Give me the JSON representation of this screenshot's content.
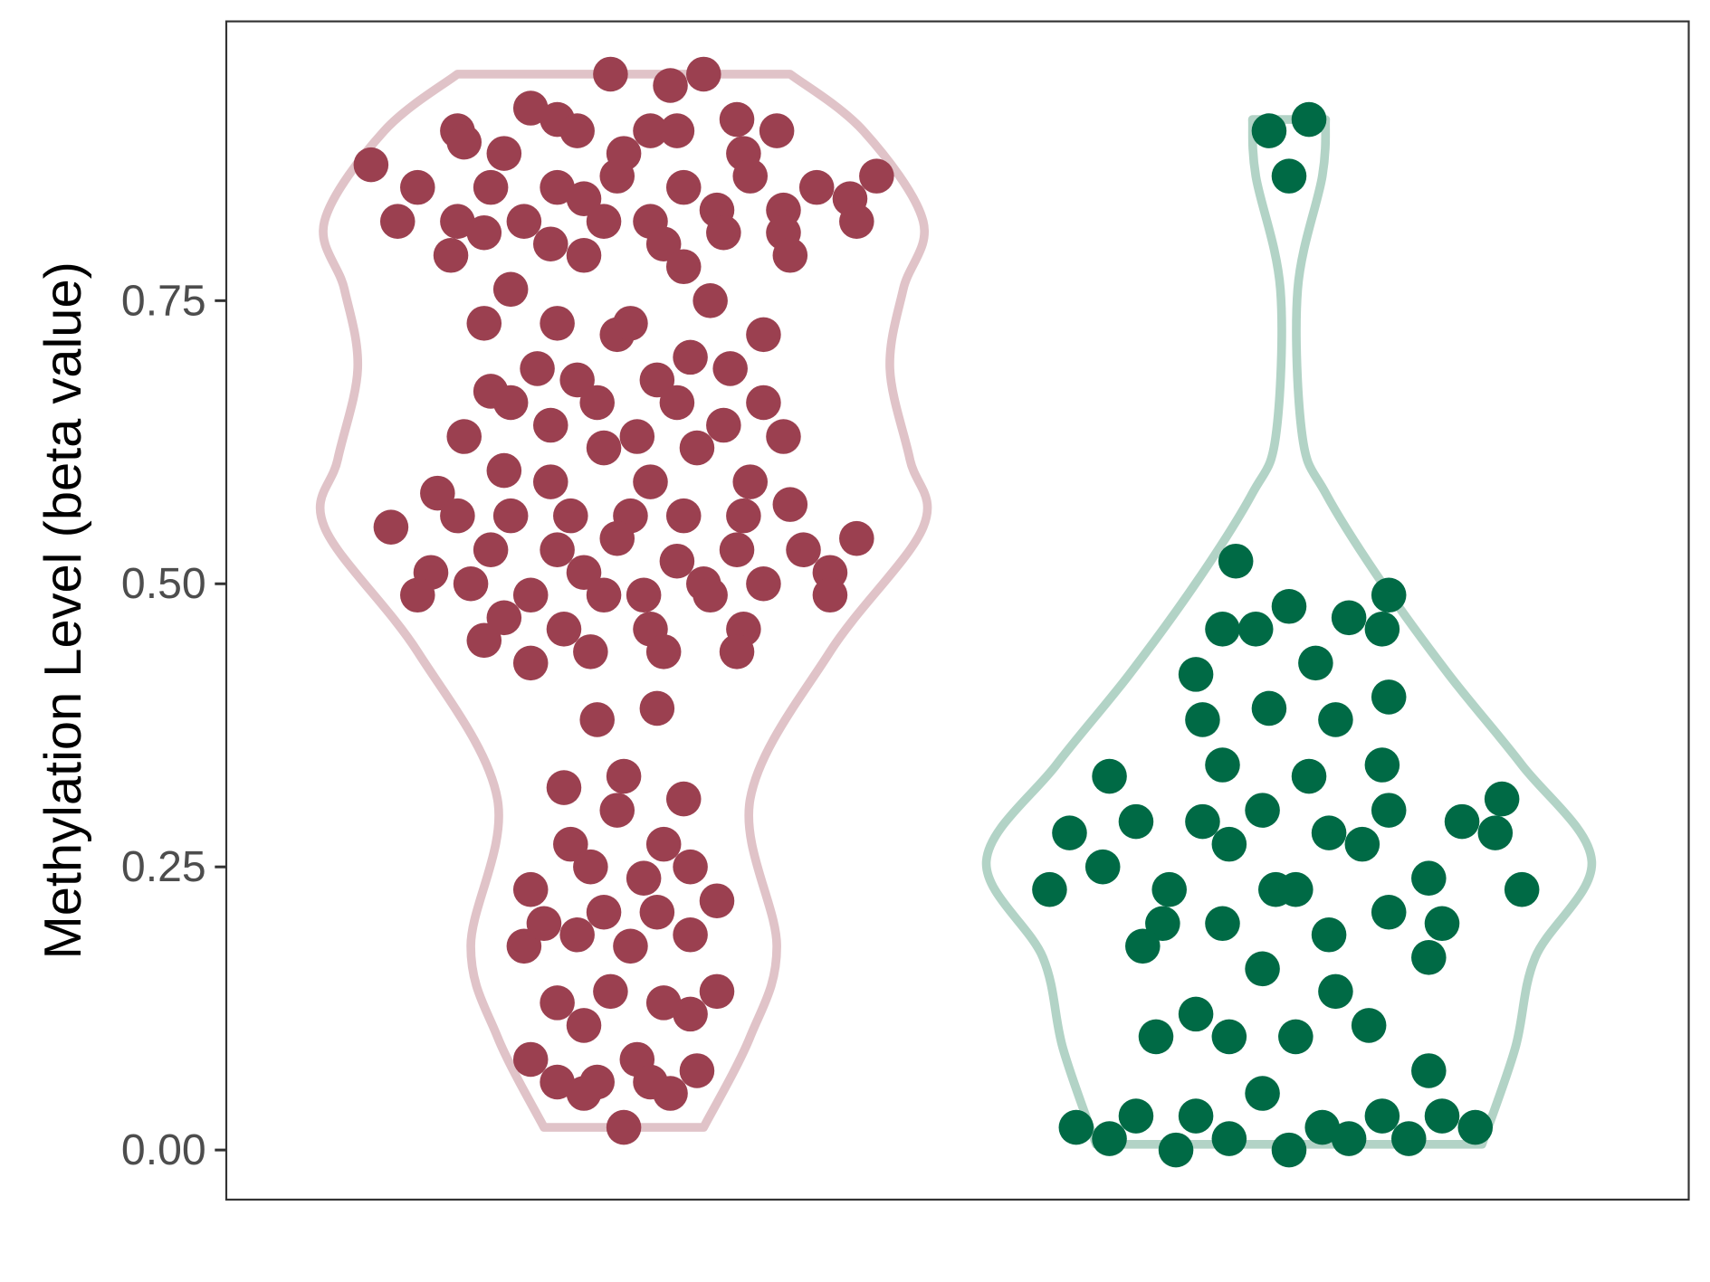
{
  "chart_data": {
    "type": "violin",
    "title": "",
    "xlabel": "",
    "ylabel": "Methylation Level (beta value)",
    "ylim": [
      -0.085,
      0.98
    ],
    "yticks": [
      0.0,
      0.25,
      0.5,
      0.75
    ],
    "ytick_labels": [
      "0.00",
      "0.25",
      "0.50",
      "0.75"
    ],
    "grid": false,
    "legend": "none",
    "series": [
      {
        "x_position": 1,
        "colors": {
          "point": "#9b4050",
          "violin": "#e0c3c8"
        },
        "violin_profile": [
          [
            0.02,
            0.12
          ],
          [
            0.1,
            0.19
          ],
          [
            0.18,
            0.23
          ],
          [
            0.31,
            0.19
          ],
          [
            0.44,
            0.31
          ],
          [
            0.55,
            0.45
          ],
          [
            0.61,
            0.43
          ],
          [
            0.69,
            0.4
          ],
          [
            0.76,
            0.42
          ],
          [
            0.82,
            0.45
          ],
          [
            0.9,
            0.36
          ],
          [
            0.95,
            0.25
          ]
        ],
        "points": [
          [
            -0.38,
            0.87
          ],
          [
            -0.34,
            0.82
          ],
          [
            -0.31,
            0.85
          ],
          [
            -0.26,
            0.79
          ],
          [
            -0.25,
            0.9
          ],
          [
            -0.24,
            0.89
          ],
          [
            -0.25,
            0.82
          ],
          [
            -0.21,
            0.81
          ],
          [
            -0.2,
            0.85
          ],
          [
            -0.18,
            0.88
          ],
          [
            -0.14,
            0.92
          ],
          [
            -0.1,
            0.91
          ],
          [
            -0.07,
            0.9
          ],
          [
            -0.1,
            0.85
          ],
          [
            -0.15,
            0.82
          ],
          [
            -0.11,
            0.8
          ],
          [
            -0.06,
            0.79
          ],
          [
            -0.06,
            0.84
          ],
          [
            -0.03,
            0.82
          ],
          [
            -0.02,
            0.95
          ],
          [
            -0.01,
            0.86
          ],
          [
            0.0,
            0.88
          ],
          [
            0.04,
            0.9
          ],
          [
            0.07,
            0.94
          ],
          [
            0.08,
            0.9
          ],
          [
            0.12,
            0.95
          ],
          [
            0.17,
            0.91
          ],
          [
            0.23,
            0.9
          ],
          [
            0.18,
            0.88
          ],
          [
            0.19,
            0.86
          ],
          [
            0.09,
            0.85
          ],
          [
            0.04,
            0.82
          ],
          [
            0.06,
            0.8
          ],
          [
            0.09,
            0.78
          ],
          [
            0.14,
            0.83
          ],
          [
            0.15,
            0.81
          ],
          [
            0.24,
            0.83
          ],
          [
            0.24,
            0.81
          ],
          [
            0.25,
            0.79
          ],
          [
            0.29,
            0.85
          ],
          [
            0.34,
            0.84
          ],
          [
            0.38,
            0.86
          ],
          [
            0.35,
            0.82
          ],
          [
            -0.17,
            0.76
          ],
          [
            -0.21,
            0.73
          ],
          [
            -0.1,
            0.73
          ],
          [
            -0.01,
            0.72
          ],
          [
            0.01,
            0.73
          ],
          [
            0.13,
            0.75
          ],
          [
            0.21,
            0.72
          ],
          [
            -0.13,
            0.69
          ],
          [
            -0.07,
            0.68
          ],
          [
            -0.04,
            0.66
          ],
          [
            -0.2,
            0.67
          ],
          [
            -0.17,
            0.66
          ],
          [
            -0.24,
            0.63
          ],
          [
            -0.11,
            0.64
          ],
          [
            -0.03,
            0.62
          ],
          [
            0.02,
            0.63
          ],
          [
            0.05,
            0.68
          ],
          [
            0.08,
            0.66
          ],
          [
            0.1,
            0.7
          ],
          [
            0.16,
            0.69
          ],
          [
            0.21,
            0.66
          ],
          [
            0.15,
            0.64
          ],
          [
            0.11,
            0.62
          ],
          [
            0.24,
            0.63
          ],
          [
            -0.18,
            0.6
          ],
          [
            -0.11,
            0.59
          ],
          [
            0.04,
            0.59
          ],
          [
            0.19,
            0.59
          ],
          [
            0.25,
            0.57
          ],
          [
            -0.35,
            0.55
          ],
          [
            -0.28,
            0.58
          ],
          [
            -0.25,
            0.56
          ],
          [
            -0.17,
            0.56
          ],
          [
            -0.08,
            0.56
          ],
          [
            0.01,
            0.56
          ],
          [
            -0.01,
            0.54
          ],
          [
            0.09,
            0.56
          ],
          [
            0.18,
            0.56
          ],
          [
            0.17,
            0.53
          ],
          [
            0.27,
            0.53
          ],
          [
            0.35,
            0.54
          ],
          [
            -0.2,
            0.53
          ],
          [
            -0.1,
            0.53
          ],
          [
            -0.29,
            0.51
          ],
          [
            -0.31,
            0.49
          ],
          [
            -0.23,
            0.5
          ],
          [
            -0.14,
            0.49
          ],
          [
            -0.06,
            0.51
          ],
          [
            -0.03,
            0.49
          ],
          [
            0.03,
            0.49
          ],
          [
            0.08,
            0.52
          ],
          [
            0.12,
            0.5
          ],
          [
            0.13,
            0.49
          ],
          [
            0.21,
            0.5
          ],
          [
            0.31,
            0.51
          ],
          [
            0.31,
            0.49
          ],
          [
            -0.21,
            0.45
          ],
          [
            -0.18,
            0.47
          ],
          [
            -0.14,
            0.43
          ],
          [
            -0.09,
            0.46
          ],
          [
            -0.05,
            0.44
          ],
          [
            0.04,
            0.46
          ],
          [
            0.06,
            0.44
          ],
          [
            0.18,
            0.46
          ],
          [
            0.17,
            0.44
          ],
          [
            -0.04,
            0.38
          ],
          [
            0.05,
            0.39
          ],
          [
            -0.09,
            0.32
          ],
          [
            0.0,
            0.33
          ],
          [
            -0.01,
            0.3
          ],
          [
            0.09,
            0.31
          ],
          [
            -0.14,
            0.23
          ],
          [
            -0.08,
            0.27
          ],
          [
            -0.05,
            0.25
          ],
          [
            0.06,
            0.27
          ],
          [
            0.1,
            0.25
          ],
          [
            0.14,
            0.22
          ],
          [
            -0.15,
            0.18
          ],
          [
            -0.12,
            0.2
          ],
          [
            -0.07,
            0.19
          ],
          [
            -0.03,
            0.21
          ],
          [
            0.01,
            0.18
          ],
          [
            0.05,
            0.21
          ],
          [
            0.1,
            0.19
          ],
          [
            0.03,
            0.24
          ],
          [
            -0.1,
            0.13
          ],
          [
            -0.06,
            0.11
          ],
          [
            -0.02,
            0.14
          ],
          [
            0.06,
            0.13
          ],
          [
            0.1,
            0.12
          ],
          [
            0.14,
            0.14
          ],
          [
            -0.14,
            0.08
          ],
          [
            -0.1,
            0.06
          ],
          [
            -0.06,
            0.05
          ],
          [
            -0.04,
            0.06
          ],
          [
            0.02,
            0.08
          ],
          [
            0.04,
            0.06
          ],
          [
            0.07,
            0.05
          ],
          [
            0.11,
            0.07
          ],
          [
            0.0,
            0.02
          ]
        ]
      },
      {
        "x_position": 2,
        "colors": {
          "point": "#006a45",
          "violin": "#b2d3c6"
        },
        "violin_profile": [
          [
            0.005,
            0.29
          ],
          [
            0.09,
            0.34
          ],
          [
            0.17,
            0.37
          ],
          [
            0.255,
            0.455
          ],
          [
            0.34,
            0.35
          ],
          [
            0.42,
            0.24
          ],
          [
            0.505,
            0.135
          ],
          [
            0.58,
            0.055
          ],
          [
            0.63,
            0.02
          ],
          [
            0.76,
            0.013
          ],
          [
            0.86,
            0.05
          ],
          [
            0.91,
            0.055
          ]
        ],
        "points": [
          [
            -0.03,
            0.9
          ],
          [
            0.03,
            0.91
          ],
          [
            0.0,
            0.86
          ],
          [
            -0.08,
            0.52
          ],
          [
            -0.1,
            0.46
          ],
          [
            -0.05,
            0.46
          ],
          [
            0.0,
            0.48
          ],
          [
            0.09,
            0.47
          ],
          [
            0.15,
            0.49
          ],
          [
            0.14,
            0.46
          ],
          [
            -0.14,
            0.42
          ],
          [
            0.04,
            0.43
          ],
          [
            -0.13,
            0.38
          ],
          [
            -0.03,
            0.39
          ],
          [
            0.07,
            0.38
          ],
          [
            0.15,
            0.4
          ],
          [
            -0.1,
            0.34
          ],
          [
            0.03,
            0.33
          ],
          [
            0.14,
            0.34
          ],
          [
            -0.27,
            0.33
          ],
          [
            -0.33,
            0.28
          ],
          [
            -0.28,
            0.25
          ],
          [
            -0.23,
            0.29
          ],
          [
            -0.13,
            0.29
          ],
          [
            -0.09,
            0.27
          ],
          [
            -0.04,
            0.3
          ],
          [
            0.06,
            0.28
          ],
          [
            0.11,
            0.27
          ],
          [
            0.15,
            0.3
          ],
          [
            0.26,
            0.29
          ],
          [
            0.32,
            0.31
          ],
          [
            0.31,
            0.28
          ],
          [
            -0.36,
            0.23
          ],
          [
            -0.18,
            0.23
          ],
          [
            -0.19,
            0.2
          ],
          [
            -0.22,
            0.18
          ],
          [
            -0.1,
            0.2
          ],
          [
            -0.02,
            0.23
          ],
          [
            0.01,
            0.23
          ],
          [
            0.06,
            0.19
          ],
          [
            0.15,
            0.21
          ],
          [
            0.21,
            0.24
          ],
          [
            0.23,
            0.2
          ],
          [
            0.21,
            0.17
          ],
          [
            0.35,
            0.23
          ],
          [
            -0.04,
            0.16
          ],
          [
            0.07,
            0.14
          ],
          [
            -0.2,
            0.1
          ],
          [
            -0.14,
            0.12
          ],
          [
            -0.09,
            0.1
          ],
          [
            0.01,
            0.1
          ],
          [
            0.12,
            0.11
          ],
          [
            0.21,
            0.07
          ],
          [
            -0.04,
            0.05
          ],
          [
            -0.32,
            0.02
          ],
          [
            -0.27,
            0.01
          ],
          [
            -0.23,
            0.03
          ],
          [
            -0.17,
            0.0
          ],
          [
            -0.14,
            0.03
          ],
          [
            -0.09,
            0.01
          ],
          [
            0.0,
            0.0
          ],
          [
            0.05,
            0.02
          ],
          [
            0.09,
            0.01
          ],
          [
            0.14,
            0.03
          ],
          [
            0.18,
            0.01
          ],
          [
            0.23,
            0.03
          ],
          [
            0.28,
            0.02
          ]
        ]
      }
    ]
  }
}
